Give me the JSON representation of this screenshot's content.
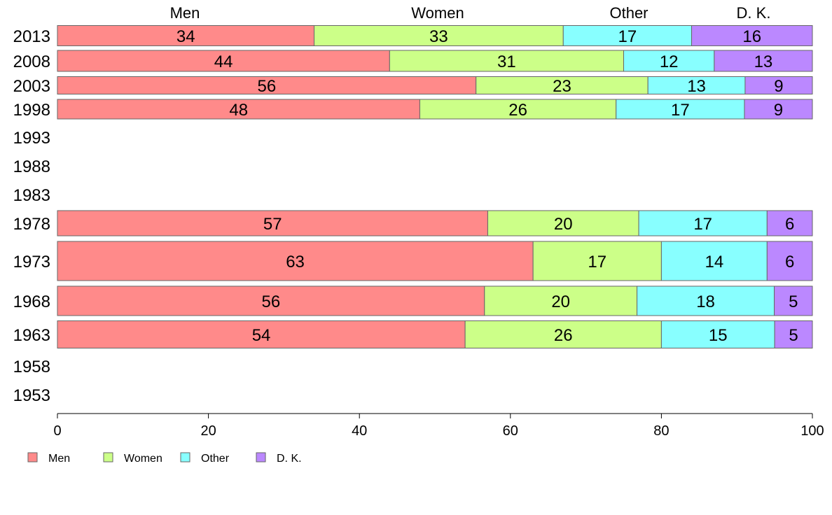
{
  "chart_data": {
    "type": "bar",
    "orientation": "horizontal",
    "stacked": true,
    "column_headers": [
      "Men",
      "Women",
      "Other",
      "D. K."
    ],
    "categories": [
      "2013",
      "2008",
      "2003",
      "1998",
      "1993",
      "1988",
      "1983",
      "1978",
      "1973",
      "1968",
      "1963",
      "1958",
      "1953"
    ],
    "series": [
      {
        "name": "Men",
        "color": "#ff8a8a",
        "values": [
          34,
          44,
          56,
          48,
          null,
          null,
          null,
          57,
          63,
          56,
          54,
          null,
          null
        ]
      },
      {
        "name": "Women",
        "color": "#ccff88",
        "values": [
          33,
          31,
          23,
          26,
          null,
          null,
          null,
          20,
          17,
          20,
          26,
          null,
          null
        ]
      },
      {
        "name": "Other",
        "color": "#88ffff",
        "values": [
          17,
          12,
          13,
          17,
          null,
          null,
          null,
          17,
          14,
          18,
          15,
          null,
          null
        ]
      },
      {
        "name": "D. K.",
        "color": "#bb88ff",
        "values": [
          16,
          13,
          9,
          9,
          null,
          null,
          null,
          6,
          6,
          5,
          5,
          null,
          null
        ]
      }
    ],
    "xlim": [
      0,
      100
    ],
    "xticks": [
      "0",
      "20",
      "40",
      "60",
      "80",
      "100"
    ],
    "grid": false,
    "legend": {
      "position": "bottom-left",
      "entries": [
        "Men",
        "Women",
        "Other",
        "D. K."
      ]
    }
  }
}
